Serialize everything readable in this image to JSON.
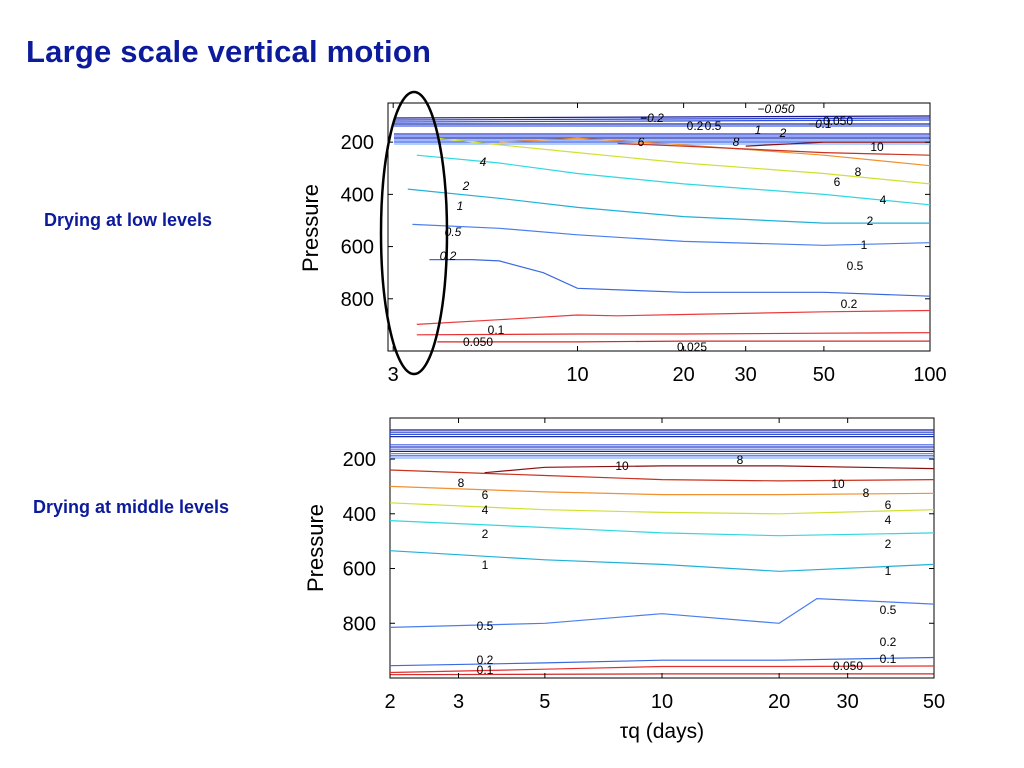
{
  "slide": {
    "title": "Large scale vertical motion",
    "label_top": "Drying at low levels",
    "label_bottom": "Drying at middle levels"
  },
  "colors": {
    "title": "#0c1a9c",
    "annotation_ellipse": "#000000"
  },
  "chart_data": [
    {
      "type": "contour",
      "title": "",
      "xlabel": "",
      "ylabel": "Pressure",
      "x_scale": "log",
      "y_inverted": true,
      "xlim": [
        2.9,
        100
      ],
      "ylim": [
        1000,
        50
      ],
      "x_ticks": [
        3,
        10,
        20,
        30,
        50,
        100
      ],
      "y_ticks": [
        200,
        400,
        600,
        800
      ],
      "annotation": "ellipse around the low-tau_q region near x = 3",
      "contours": [
        {
          "level": 0.05,
          "color": "#e53030",
          "x": [
            3.5,
            10,
            20,
            50,
            100
          ],
          "y": [
            938,
            935,
            935,
            932,
            930
          ]
        },
        {
          "level": 0.1,
          "color": "#ea3a3a",
          "x": [
            3.5,
            6,
            10,
            13,
            20,
            50,
            100
          ],
          "y": [
            898,
            880,
            862,
            865,
            860,
            850,
            845
          ]
        },
        {
          "level": 0.025,
          "color": "#d12a2a",
          "x": [
            4,
            10,
            20,
            50,
            100
          ],
          "y": [
            965,
            965,
            962,
            962,
            962
          ]
        },
        {
          "level": 0.2,
          "color": "#3a6ae0",
          "x": [
            3.8,
            5,
            6,
            8,
            10,
            20,
            50,
            100
          ],
          "y": [
            650,
            650,
            655,
            700,
            760,
            775,
            775,
            790
          ]
        },
        {
          "level": 0.5,
          "color": "#4a7ef0",
          "x": [
            3.4,
            6,
            10,
            20,
            50,
            100
          ],
          "y": [
            515,
            530,
            555,
            580,
            595,
            585
          ]
        },
        {
          "level": 1,
          "color": "#22b0d8",
          "x": [
            3.3,
            6,
            10,
            20,
            50,
            100
          ],
          "y": [
            380,
            415,
            450,
            485,
            510,
            510
          ]
        },
        {
          "level": 2,
          "color": "#30d8e0",
          "x": [
            3.5,
            6,
            10,
            20,
            50,
            100
          ],
          "y": [
            250,
            280,
            320,
            360,
            400,
            440
          ]
        },
        {
          "level": 4,
          "color": "#d0e030",
          "x": [
            4,
            6,
            10,
            20,
            50,
            100
          ],
          "y": [
            185,
            210,
            240,
            280,
            320,
            360
          ]
        },
        {
          "level": 6,
          "color": "#f09030",
          "x": [
            6,
            10,
            20,
            50,
            100
          ],
          "y": [
            200,
            185,
            210,
            250,
            290
          ]
        },
        {
          "level": 8,
          "color": "#c8321e",
          "x": [
            13,
            20,
            50,
            100
          ],
          "y": [
            205,
            215,
            240,
            250
          ]
        },
        {
          "level": 10,
          "color": "#8a1010",
          "x": [
            30,
            50,
            100
          ],
          "y": [
            215,
            200,
            200
          ]
        }
      ]
    },
    {
      "type": "contour",
      "title": "",
      "xlabel": "τq (days)",
      "ylabel": "Pressure",
      "x_scale": "log",
      "y_inverted": true,
      "xlim": [
        2,
        50
      ],
      "ylim": [
        1000,
        50
      ],
      "x_ticks": [
        2,
        3,
        5,
        10,
        20,
        30,
        50
      ],
      "y_ticks": [
        200,
        400,
        600,
        800
      ],
      "contours": [
        {
          "level": 0.1,
          "color": "#e53030",
          "x": [
            2,
            5,
            10,
            20,
            50
          ],
          "y": [
            980,
            968,
            958,
            958,
            956
          ]
        },
        {
          "level": 0.05,
          "color": "#d12a2a",
          "x": [
            2,
            10,
            20,
            50
          ],
          "y": [
            988,
            985,
            985,
            985
          ]
        },
        {
          "level": 0.2,
          "color": "#3a6ae0",
          "x": [
            2,
            5,
            10,
            20,
            50
          ],
          "y": [
            955,
            945,
            935,
            935,
            925
          ]
        },
        {
          "level": 0.5,
          "color": "#4a7ef0",
          "x": [
            2,
            5,
            10,
            20,
            25,
            50
          ],
          "y": [
            815,
            800,
            765,
            800,
            710,
            730
          ]
        },
        {
          "level": 1,
          "color": "#22b0d8",
          "x": [
            2,
            5,
            10,
            20,
            50
          ],
          "y": [
            535,
            568,
            585,
            610,
            585
          ]
        },
        {
          "level": 2,
          "color": "#30d8e0",
          "x": [
            2,
            5,
            10,
            20,
            50
          ],
          "y": [
            425,
            450,
            470,
            480,
            470
          ]
        },
        {
          "level": 4,
          "color": "#d0e030",
          "x": [
            2,
            5,
            10,
            20,
            50
          ],
          "y": [
            360,
            385,
            395,
            400,
            385
          ]
        },
        {
          "level": 6,
          "color": "#f09030",
          "x": [
            2,
            5,
            10,
            20,
            50
          ],
          "y": [
            300,
            320,
            330,
            330,
            325
          ]
        },
        {
          "level": 8,
          "color": "#c8321e",
          "x": [
            2,
            5,
            10,
            20,
            50
          ],
          "y": [
            240,
            260,
            275,
            280,
            275
          ]
        },
        {
          "level": 10,
          "color": "#8a1010",
          "x": [
            3.5,
            5,
            10,
            20,
            50
          ],
          "y": [
            250,
            230,
            225,
            225,
            235
          ]
        }
      ]
    }
  ],
  "chart_text": {
    "top_contour_labels": [
      "0.1",
      "0.050",
      "0.025",
      "0.2",
      "0.5",
      "1",
      "2",
      "4",
      "6",
      "8",
      "10",
      "−0.050",
      "−0.1",
      "−0.2",
      "0.050",
      "0.2",
      "0.5"
    ],
    "bottom_contour_labels": [
      "0.1",
      "0.050",
      "0.2",
      "0.5",
      "1",
      "2",
      "4",
      "6",
      "8",
      "10"
    ]
  }
}
